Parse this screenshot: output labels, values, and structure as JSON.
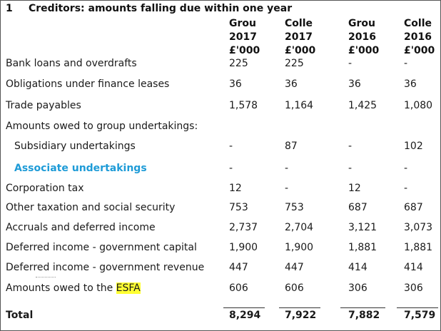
{
  "title": {
    "number": "1",
    "text": "Creditors: amounts falling due within one year"
  },
  "headers": [
    {
      "entity": "Grou",
      "year": "2017",
      "unit": "£'000"
    },
    {
      "entity": "Colle",
      "year": "2017",
      "unit": "£'000"
    },
    {
      "entity": "Grou",
      "year": "2016",
      "unit": "£'000"
    },
    {
      "entity": "Colle",
      "year": "2016",
      "unit": "£'000"
    }
  ],
  "rows": [
    {
      "label": "Bank loans and overdrafts",
      "values": [
        "225",
        "225",
        "-",
        "-"
      ]
    },
    {
      "label": "Obligations under finance leases",
      "values": [
        "36",
        "36",
        "36",
        "36"
      ]
    },
    {
      "label": "Trade payables",
      "values": [
        "1,578",
        "1,164",
        "1,425",
        "1,080"
      ]
    },
    {
      "label": "Amounts owed to group undertakings:",
      "values": [
        "",
        "",
        "",
        ""
      ]
    },
    {
      "label": "Subsidiary undertakings",
      "values": [
        "-",
        "87",
        "-",
        "102"
      ]
    },
    {
      "label": "Associate undertakings",
      "values": [
        "-",
        "-",
        "-",
        "-"
      ]
    },
    {
      "label": "Corporation tax",
      "values": [
        "12",
        "-",
        "12",
        "-"
      ]
    },
    {
      "label": "Other taxation and social security",
      "values": [
        "753",
        "753",
        "687",
        "687"
      ]
    },
    {
      "label": "Accruals and deferred income",
      "values": [
        "2,737",
        "2,704",
        "3,121",
        "3,073"
      ]
    },
    {
      "label": "Deferred income -  government capital",
      "values": [
        "1,900",
        "1,900",
        "1,881",
        "1,881"
      ]
    },
    {
      "label": "Deferred income -  government revenue",
      "values": [
        "447",
        "447",
        "414",
        "414"
      ]
    },
    {
      "label_prefix": "Amounts owed to the ",
      "label_highlight": "ESFA",
      "values": [
        "606",
        "606",
        "306",
        "306"
      ]
    }
  ],
  "total": {
    "label": "Total",
    "values": [
      "8,294",
      "7,922",
      "7,882",
      "7,579"
    ]
  }
}
